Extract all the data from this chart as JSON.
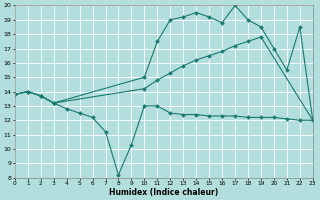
{
  "xlabel": "Humidex (Indice chaleur)",
  "xlim": [
    0,
    23
  ],
  "ylim": [
    8,
    20
  ],
  "yticks": [
    8,
    9,
    10,
    11,
    12,
    13,
    14,
    15,
    16,
    17,
    18,
    19,
    20
  ],
  "xticks": [
    0,
    1,
    2,
    3,
    4,
    5,
    6,
    7,
    8,
    9,
    10,
    11,
    12,
    13,
    14,
    15,
    16,
    17,
    18,
    19,
    20,
    21,
    22,
    23
  ],
  "background_color": "#b2dede",
  "grid_color": "#ffffff",
  "line_color": "#1a7a6e",
  "lines": [
    {
      "x": [
        0,
        1,
        2,
        3,
        10,
        11,
        12,
        13,
        14,
        15,
        16,
        17,
        18,
        19,
        20,
        21,
        22,
        23
      ],
      "y": [
        13.8,
        14.0,
        13.7,
        13.2,
        15.0,
        17.5,
        19.0,
        19.2,
        19.5,
        19.2,
        18.8,
        20.0,
        19.0,
        18.5,
        17.0,
        15.5,
        18.5,
        12.0
      ]
    },
    {
      "x": [
        0,
        1,
        2,
        3,
        10,
        11,
        12,
        13,
        14,
        15,
        16,
        17,
        18,
        19,
        23
      ],
      "y": [
        13.8,
        14.0,
        13.7,
        13.2,
        14.2,
        14.8,
        15.3,
        15.8,
        16.2,
        16.5,
        16.8,
        17.2,
        17.5,
        17.8,
        12.0
      ]
    },
    {
      "x": [
        0,
        1,
        2,
        3,
        4,
        5,
        6,
        7,
        8,
        9,
        10,
        11,
        12,
        13,
        14,
        15,
        16,
        17,
        18,
        19,
        20,
        21,
        22,
        23
      ],
      "y": [
        13.8,
        14.0,
        13.7,
        13.2,
        12.8,
        12.5,
        12.2,
        11.2,
        8.2,
        10.3,
        13.0,
        13.0,
        12.5,
        12.4,
        12.4,
        12.3,
        12.3,
        12.3,
        12.2,
        12.2,
        12.2,
        12.1,
        12.0,
        12.0
      ]
    }
  ]
}
